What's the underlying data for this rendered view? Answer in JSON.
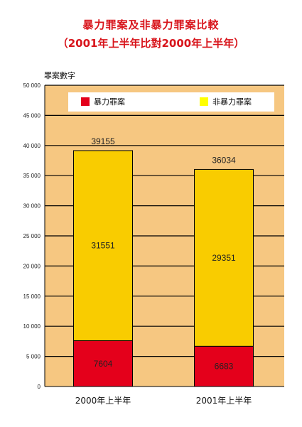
{
  "chart_data": {
    "type": "bar",
    "stacked": true,
    "title": "暴力罪案及非暴力罪案比較",
    "subtitle": "（2001年上半年比對2000年上半年）",
    "ylabel": "罪案數字",
    "xlabel": "",
    "ylim": [
      0,
      50000
    ],
    "yticks": [
      "0",
      "5 000",
      "10 000",
      "15 000",
      "20 000",
      "25 000",
      "30 000",
      "35 000",
      "40 000",
      "45 000",
      "50 000"
    ],
    "grid": true,
    "legend_position": "top",
    "categories": [
      "2000年上半年",
      "2001年上半年"
    ],
    "series": [
      {
        "name": "暴力罪案",
        "values": [
          7604,
          6683
        ],
        "color": "#e4001b"
      },
      {
        "name": "非暴力罪案",
        "values": [
          31551,
          29351
        ],
        "color": "#f9cc00"
      }
    ],
    "totals": [
      39155,
      36034
    ],
    "colors": {
      "plot_background": "#f6c781",
      "title": "#d8141b",
      "legend_yellow": "#ffff00"
    }
  }
}
